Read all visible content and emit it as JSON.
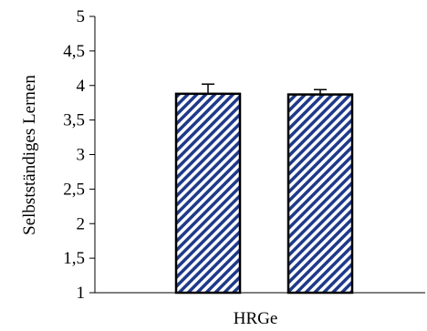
{
  "chart_data": {
    "type": "bar",
    "categories": [
      "HRGe"
    ],
    "series": [
      {
        "values": [
          3.88
        ],
        "errors": [
          0.14
        ]
      },
      {
        "values": [
          3.87
        ],
        "errors": [
          0.07
        ]
      }
    ],
    "xlabel": "HRGe",
    "ylabel": "Selbstständiges Lernen",
    "ylim": [
      1,
      5
    ],
    "yticks": [
      "1",
      "1,5",
      "2",
      "2,5",
      "3",
      "3,5",
      "4",
      "4,5",
      "5"
    ],
    "bar_style": "diagonal hatch",
    "colors": {
      "hatch": "#1f3a8a",
      "outline": "#000000"
    },
    "grid": false,
    "legend": "none"
  }
}
